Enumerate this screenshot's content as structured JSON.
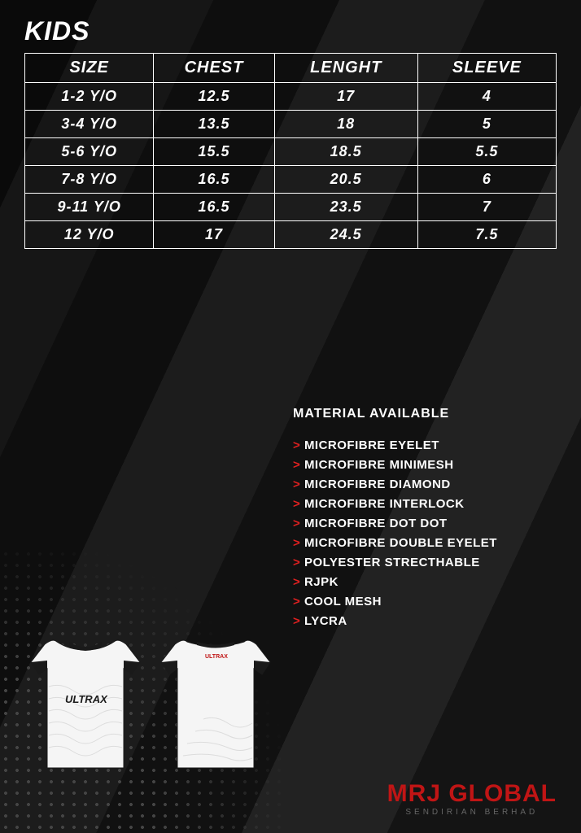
{
  "title": "KIDS",
  "table": {
    "columns": [
      "SIZE",
      "CHEST",
      "LENGHT",
      "SLEEVE"
    ],
    "rows": [
      [
        "1-2 Y/O",
        "12.5",
        "17",
        "4"
      ],
      [
        "3-4 Y/O",
        "13.5",
        "18",
        "5"
      ],
      [
        "5-6 Y/O",
        "15.5",
        "18.5",
        "5.5"
      ],
      [
        "7-8 Y/O",
        "16.5",
        "20.5",
        "6"
      ],
      [
        "9-11 Y/O",
        "16.5",
        "23.5",
        "7"
      ],
      [
        "12 Y/O",
        "17",
        "24.5",
        "7.5"
      ]
    ],
    "border_color": "#ffffff",
    "text_color": "#ffffff",
    "header_fontsize": 20,
    "cell_fontsize": 18
  },
  "materials": {
    "title": "MATERIAL AVAILABLE",
    "items": [
      "MICROFIBRE EYELET",
      "MICROFIBRE MINIMESH",
      "MICROFIBRE DIAMOND",
      "MICROFIBRE INTERLOCK",
      "MICROFIBRE DOT DOT",
      "MICROFIBRE DOUBLE EYELET",
      "POLYESTER STRECTHABLE",
      "RJPK",
      "COOL MESH",
      "LYCRA"
    ],
    "bullet_color": "#e02020"
  },
  "jersey": {
    "brand": "ULTRAX",
    "body_color": "#ffffff",
    "trim_color": "#1a1a1a",
    "pattern_color": "#cccccc"
  },
  "logo": {
    "main": "MRJ GLOBAL",
    "sub": "SENDIRIAN BERHAD",
    "main_color": "#c01515",
    "sub_color": "#666666"
  },
  "background": {
    "base_color": "#1a1a1a",
    "stripe_colors": [
      "#0a0a0a",
      "#161616",
      "#0e0e0e",
      "#1c1c1c",
      "#111111",
      "#222222",
      "#141414"
    ],
    "dot_color": "#444444"
  }
}
